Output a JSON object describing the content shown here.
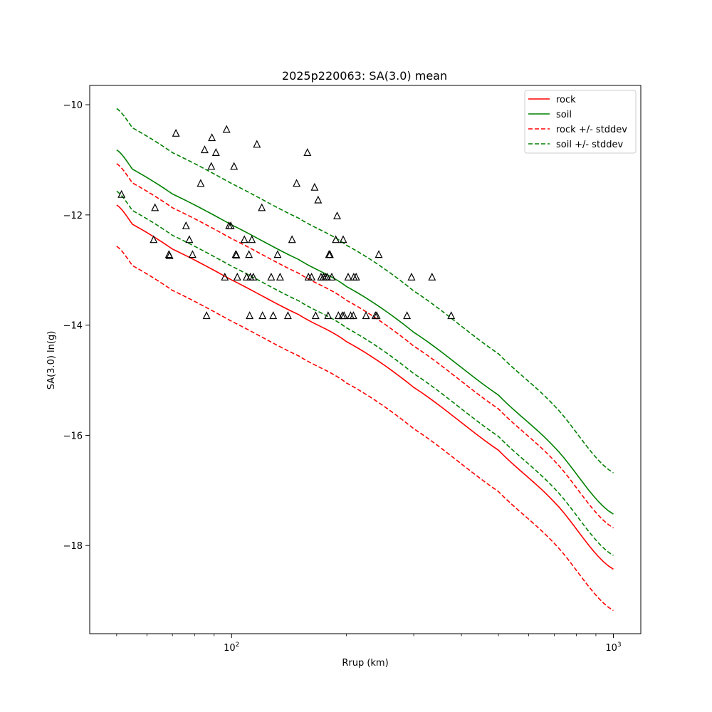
{
  "chart_data": {
    "type": "line",
    "title": "2025p220063: SA(3.0) mean",
    "xlabel": "Rrup (km)",
    "ylabel": "SA(3.0) ln(g)",
    "xscale": "log",
    "xlim": [
      42.5,
      1180
    ],
    "ylim": [
      -19.6,
      -9.65
    ],
    "grid": false,
    "legend_position": "top-right",
    "x_ticks": [
      {
        "value": 100,
        "base": "10",
        "exp": "2"
      },
      {
        "value": 1000,
        "base": "10",
        "exp": "3"
      }
    ],
    "y_ticks": [
      {
        "value": -10,
        "label": "−10"
      },
      {
        "value": -12,
        "label": "−12"
      },
      {
        "value": -14,
        "label": "−14"
      },
      {
        "value": -16,
        "label": "−16"
      },
      {
        "value": -18,
        "label": "−18"
      }
    ],
    "series": [
      {
        "name": "rock",
        "color": "#ff0000",
        "dashed": false,
        "points": [
          [
            50,
            -11.82
          ],
          [
            55,
            -12.17
          ],
          [
            70,
            -12.62
          ],
          [
            100,
            -13.18
          ],
          [
            150,
            -13.81
          ],
          [
            200,
            -14.3
          ],
          [
            300,
            -15.13
          ],
          [
            500,
            -16.27
          ],
          [
            700,
            -17.21
          ],
          [
            1000,
            -18.43
          ]
        ]
      },
      {
        "name": "soil",
        "color": "#008000",
        "dashed": false,
        "points": [
          [
            50,
            -10.82
          ],
          [
            55,
            -11.17
          ],
          [
            70,
            -11.62
          ],
          [
            100,
            -12.18
          ],
          [
            150,
            -12.81
          ],
          [
            200,
            -13.3
          ],
          [
            300,
            -14.13
          ],
          [
            500,
            -15.27
          ],
          [
            700,
            -16.21
          ],
          [
            1000,
            -17.43
          ]
        ]
      },
      {
        "name": "rock +/- stddev",
        "color": "#ff0000",
        "dashed": true,
        "points": [
          [
            50,
            -11.07
          ],
          [
            55,
            -11.42
          ],
          [
            70,
            -11.87
          ],
          [
            100,
            -12.43
          ],
          [
            150,
            -13.06
          ],
          [
            200,
            -13.55
          ],
          [
            300,
            -14.38
          ],
          [
            500,
            -15.52
          ],
          [
            700,
            -16.46
          ],
          [
            1000,
            -17.68
          ]
        ]
      },
      {
        "name": "",
        "color": "#ff0000",
        "dashed": true,
        "points": [
          [
            50,
            -12.57
          ],
          [
            55,
            -12.92
          ],
          [
            70,
            -13.37
          ],
          [
            100,
            -13.93
          ],
          [
            150,
            -14.56
          ],
          [
            200,
            -15.05
          ],
          [
            300,
            -15.88
          ],
          [
            500,
            -17.02
          ],
          [
            700,
            -17.96
          ],
          [
            1000,
            -19.18
          ]
        ]
      },
      {
        "name": "soil +/- stddev",
        "color": "#008000",
        "dashed": true,
        "points": [
          [
            50,
            -10.07
          ],
          [
            55,
            -10.42
          ],
          [
            70,
            -10.87
          ],
          [
            100,
            -11.43
          ],
          [
            150,
            -12.06
          ],
          [
            200,
            -12.55
          ],
          [
            300,
            -13.38
          ],
          [
            500,
            -14.52
          ],
          [
            700,
            -15.46
          ],
          [
            1000,
            -16.68
          ]
        ]
      },
      {
        "name": "",
        "color": "#008000",
        "dashed": true,
        "points": [
          [
            50,
            -11.57
          ],
          [
            55,
            -11.92
          ],
          [
            70,
            -12.37
          ],
          [
            100,
            -12.93
          ],
          [
            150,
            -13.56
          ],
          [
            200,
            -14.05
          ],
          [
            300,
            -14.88
          ],
          [
            500,
            -16.02
          ],
          [
            700,
            -16.96
          ],
          [
            1000,
            -18.18
          ]
        ]
      }
    ],
    "observations": [
      [
        51.5,
        -11.63
      ],
      [
        71.5,
        -10.52
      ],
      [
        63,
        -11.87
      ],
      [
        62.5,
        -12.45
      ],
      [
        68.5,
        -12.72
      ],
      [
        68.8,
        -12.74
      ],
      [
        76,
        -12.2
      ],
      [
        77.5,
        -12.45
      ],
      [
        79,
        -12.72
      ],
      [
        83,
        -11.43
      ],
      [
        85,
        -10.82
      ],
      [
        86,
        -13.83
      ],
      [
        88.5,
        -11.12
      ],
      [
        88.8,
        -10.6
      ],
      [
        91,
        -10.87
      ],
      [
        96,
        -13.13
      ],
      [
        97,
        -10.45
      ],
      [
        98.5,
        -12.2
      ],
      [
        99.5,
        -12.2
      ],
      [
        101.5,
        -11.12
      ],
      [
        102.5,
        -12.72
      ],
      [
        103,
        -12.73
      ],
      [
        103.5,
        -13.13
      ],
      [
        108,
        -12.45
      ],
      [
        109.5,
        -13.13
      ],
      [
        111,
        -12.72
      ],
      [
        111.5,
        -13.83
      ],
      [
        112,
        -13.13
      ],
      [
        113,
        -12.45
      ],
      [
        114,
        -13.13
      ],
      [
        116.5,
        -10.72
      ],
      [
        120,
        -11.87
      ],
      [
        120.5,
        -13.83
      ],
      [
        127,
        -13.13
      ],
      [
        128.5,
        -13.83
      ],
      [
        132,
        -12.72
      ],
      [
        134,
        -13.13
      ],
      [
        140.5,
        -13.83
      ],
      [
        144,
        -12.45
      ],
      [
        148,
        -11.43
      ],
      [
        158,
        -10.87
      ],
      [
        159,
        -13.13
      ],
      [
        162,
        -13.13
      ],
      [
        165,
        -11.5
      ],
      [
        166,
        -13.83
      ],
      [
        168.5,
        -11.73
      ],
      [
        171.5,
        -13.13
      ],
      [
        174,
        -13.13
      ],
      [
        176,
        -13.13
      ],
      [
        178,
        -13.13
      ],
      [
        179,
        -13.83
      ],
      [
        180,
        -12.72
      ],
      [
        181,
        -12.72
      ],
      [
        183,
        -13.13
      ],
      [
        187.5,
        -12.45
      ],
      [
        189,
        -12.02
      ],
      [
        190.5,
        -13.83
      ],
      [
        195,
        -13.83
      ],
      [
        196,
        -12.45
      ],
      [
        197,
        -13.83
      ],
      [
        202,
        -13.13
      ],
      [
        205,
        -13.83
      ],
      [
        208.5,
        -13.83
      ],
      [
        209,
        -13.13
      ],
      [
        212,
        -13.13
      ],
      [
        225,
        -13.83
      ],
      [
        238,
        -13.83
      ],
      [
        240,
        -13.83
      ],
      [
        243,
        -12.72
      ],
      [
        288,
        -13.83
      ],
      [
        296,
        -13.13
      ],
      [
        335,
        -13.13
      ],
      [
        376,
        -13.83
      ]
    ]
  }
}
